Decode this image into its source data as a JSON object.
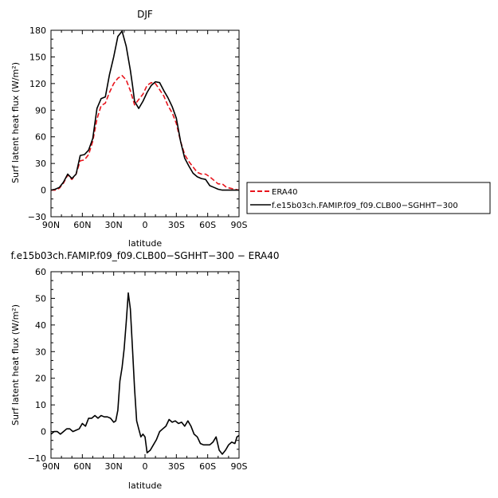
{
  "chart_data": [
    {
      "type": "line",
      "title": "DJF",
      "xlabel": "latitude",
      "ylabel": "Surf latent heat flux (W/m²)",
      "xlim": [
        90,
        -90
      ],
      "ylim": [
        -30,
        180
      ],
      "xticks": [
        90,
        60,
        30,
        0,
        -30,
        -60,
        -90
      ],
      "xtick_labels": [
        "90N",
        "60N",
        "30N",
        "0",
        "30S",
        "60S",
        "90S"
      ],
      "yticks": [
        -30,
        0,
        30,
        60,
        90,
        120,
        150,
        180
      ],
      "ytick_labels": [
        "−30",
        "0",
        "30",
        "60",
        "90",
        "120",
        "150",
        "180"
      ],
      "legend_position": "right",
      "series": [
        {
          "name": "ERA40",
          "color": "#e8141c",
          "dash": "dashed",
          "x": [
            90,
            86,
            82,
            78,
            74,
            70,
            66,
            62,
            58,
            54,
            50,
            46,
            42,
            38,
            34,
            30,
            26,
            22,
            18,
            14,
            10,
            6,
            2,
            -2,
            -6,
            -10,
            -14,
            -18,
            -22,
            -26,
            -30,
            -34,
            -38,
            -42,
            -46,
            -50,
            -54,
            -58,
            -62,
            -66,
            -70,
            -74,
            -78,
            -82,
            -86,
            -90
          ],
          "y": [
            0,
            0,
            2,
            8,
            17,
            12,
            18,
            33,
            34,
            40,
            55,
            80,
            95,
            98,
            110,
            120,
            126,
            129,
            124,
            112,
            96,
            102,
            108,
            118,
            121,
            120,
            113,
            106,
            95,
            87,
            75,
            55,
            40,
            32,
            26,
            20,
            18,
            18,
            15,
            11,
            7,
            7,
            3,
            2,
            1,
            0
          ]
        },
        {
          "name": "f.e15b03ch.FAMIP.f09_f09.CLB00−SGHHT−300",
          "color": "#000000",
          "dash": "solid",
          "x": [
            90,
            86,
            82,
            78,
            74,
            70,
            66,
            62,
            58,
            54,
            50,
            46,
            42,
            38,
            34,
            30,
            26,
            22,
            18,
            14,
            12,
            10,
            6,
            2,
            -2,
            -6,
            -10,
            -14,
            -18,
            -22,
            -26,
            -30,
            -34,
            -38,
            -42,
            -46,
            -50,
            -54,
            -58,
            -62,
            -66,
            -70,
            -74,
            -78,
            -82,
            -86,
            -90
          ],
          "y": [
            0,
            1,
            3,
            9,
            18,
            13,
            18,
            39,
            40,
            45,
            58,
            92,
            103,
            105,
            130,
            150,
            173,
            179,
            162,
            135,
            118,
            100,
            92,
            100,
            110,
            118,
            122,
            121,
            112,
            104,
            94,
            81,
            55,
            36,
            27,
            19,
            15,
            13,
            12,
            5,
            3,
            1,
            0,
            0,
            0,
            0,
            0
          ]
        }
      ]
    },
    {
      "type": "line",
      "title": "f.e15b03ch.FAMIP.f09_f09.CLB00−SGHHT−300 − ERA40",
      "xlabel": "latitude",
      "ylabel": "Surf latent heat flux (W/m²)",
      "xlim": [
        90,
        -90
      ],
      "ylim": [
        -10,
        60
      ],
      "xticks": [
        90,
        60,
        30,
        0,
        -30,
        -60,
        -90
      ],
      "xtick_labels": [
        "90N",
        "60N",
        "30N",
        "0",
        "30S",
        "60S",
        "90S"
      ],
      "yticks": [
        -10,
        0,
        10,
        20,
        30,
        40,
        50,
        60
      ],
      "ytick_labels": [
        "−10",
        "0",
        "10",
        "20",
        "30",
        "40",
        "50",
        "60"
      ],
      "series": [
        {
          "color": "#000000",
          "dash": "solid",
          "x": [
            90,
            87,
            84,
            81,
            78,
            75,
            72,
            69,
            66,
            63,
            60,
            57,
            54,
            51,
            48,
            45,
            42,
            39,
            36,
            33,
            30,
            28,
            26,
            24,
            22,
            20,
            18,
            16,
            14,
            12,
            10,
            8,
            6,
            4,
            2,
            0,
            -2,
            -5,
            -8,
            -11,
            -14,
            -17,
            -20,
            -23,
            -26,
            -29,
            -32,
            -35,
            -38,
            -41,
            -44,
            -47,
            -50,
            -53,
            -56,
            -59,
            -62,
            -65,
            -68,
            -71,
            -74,
            -77,
            -80,
            -83,
            -86,
            -88,
            -90
          ],
          "y": [
            -1,
            0,
            0,
            -1,
            0,
            1,
            1,
            0,
            0.5,
            1,
            3,
            2,
            5,
            5,
            6,
            5,
            6,
            5.5,
            5.5,
            5,
            3.5,
            4,
            8,
            19,
            24,
            31,
            41,
            52,
            46,
            31,
            16,
            4,
            1,
            -2,
            -1,
            -2,
            -8,
            -7,
            -5,
            -3,
            0,
            1,
            2,
            4.5,
            3.5,
            4,
            3,
            3.5,
            2,
            4,
            2,
            -1,
            -2,
            -4.5,
            -5,
            -5,
            -5,
            -4,
            -2,
            -7,
            -8.5,
            -7,
            -5,
            -4,
            -4.5,
            -2,
            -1.5
          ]
        }
      ]
    }
  ]
}
